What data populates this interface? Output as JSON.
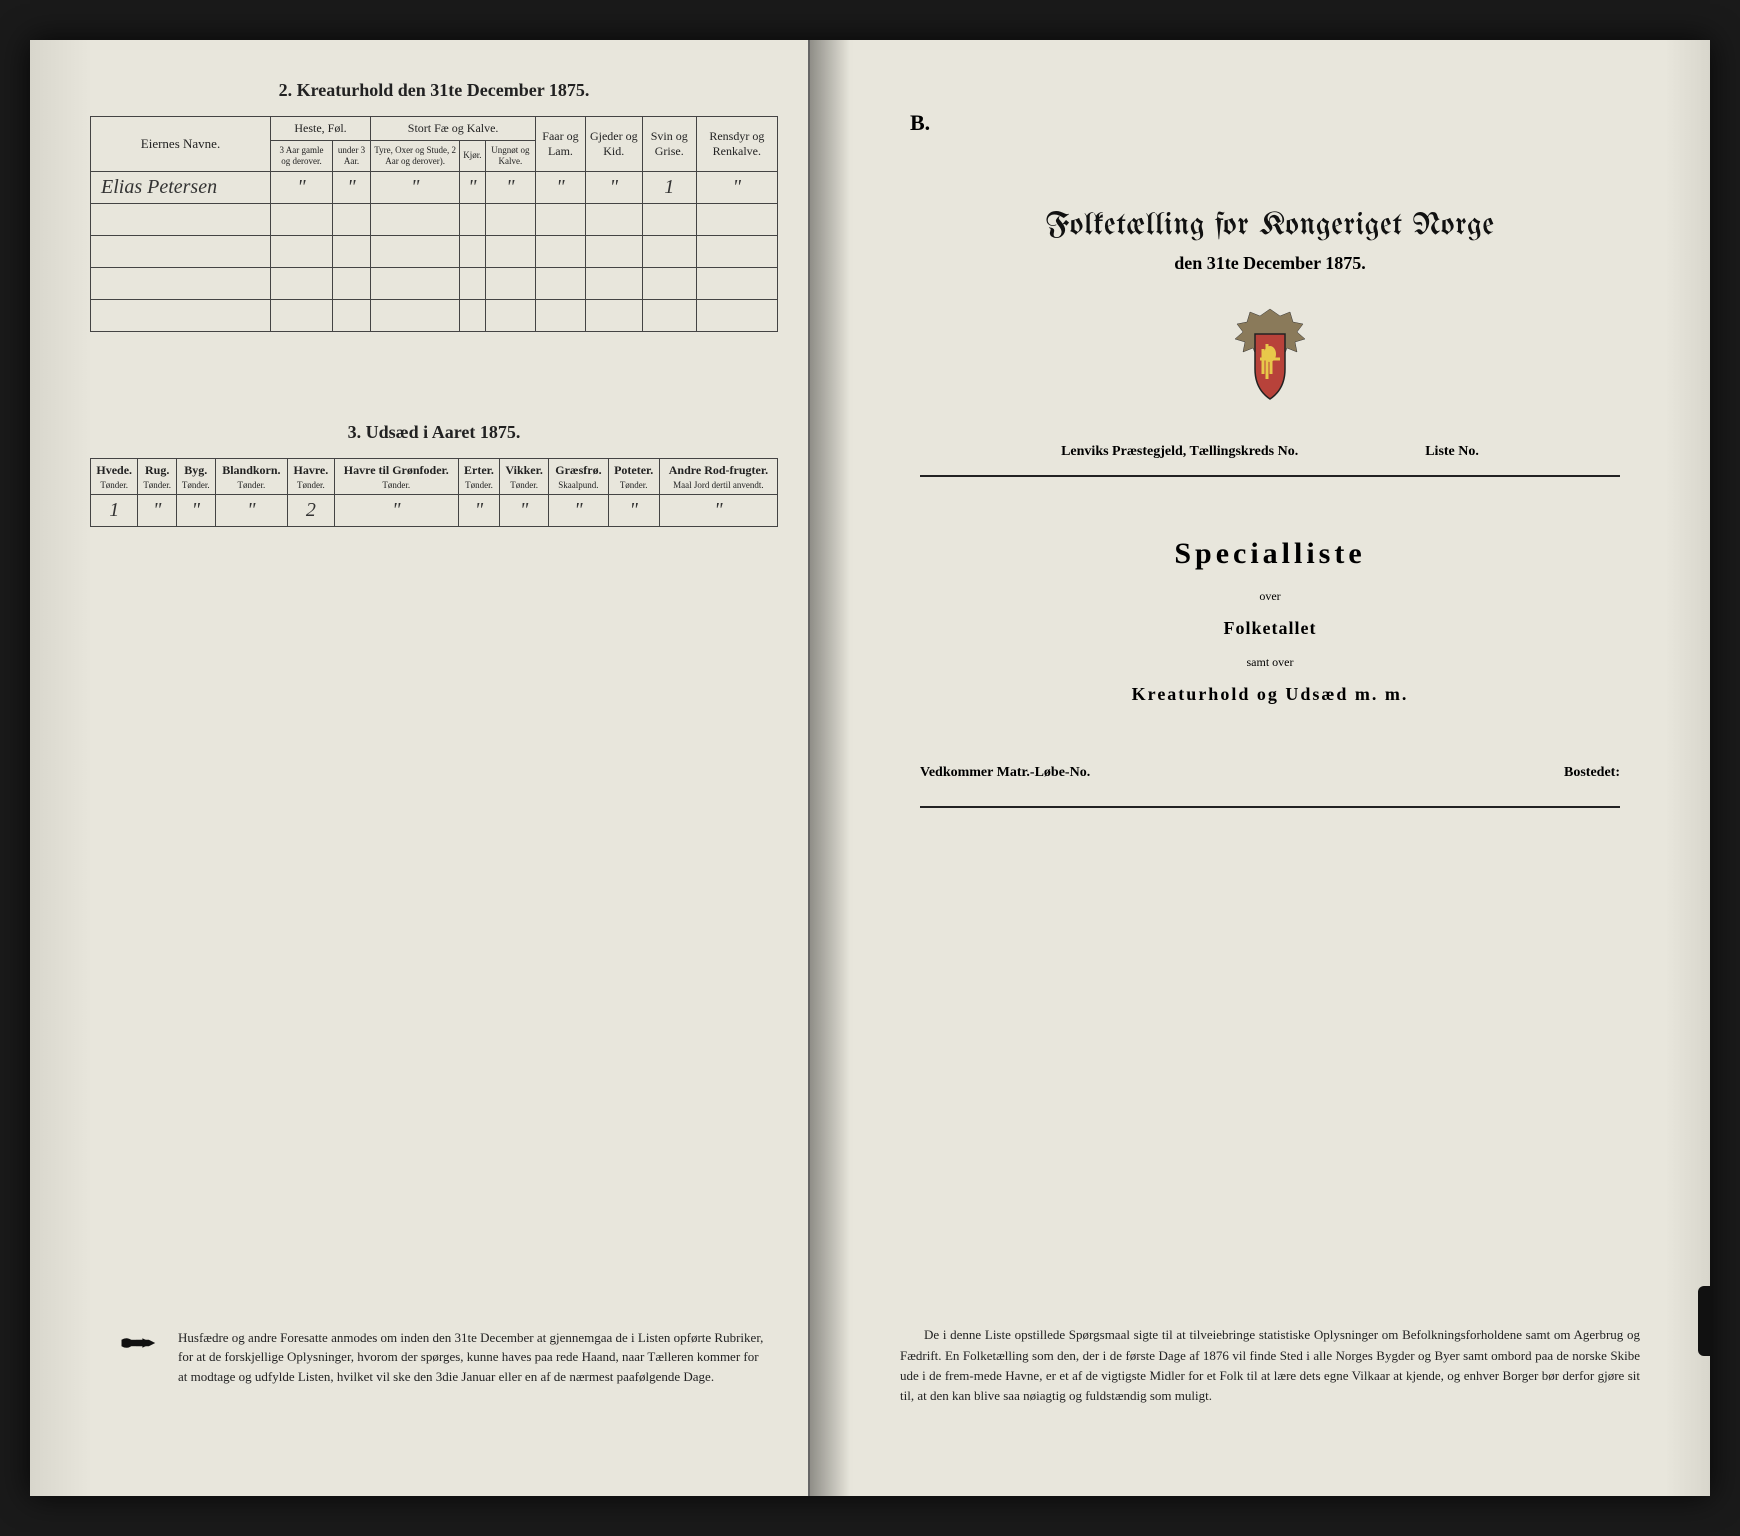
{
  "left": {
    "section2_title": "2.  Kreaturhold den 31te December 1875.",
    "table2": {
      "headers": {
        "name": "Eiernes Navne.",
        "heste": "Heste, Føl.",
        "heste_sub1": "3 Aar gamle og derover.",
        "heste_sub2": "under 3 Aar.",
        "stort": "Stort Fæ og Kalve.",
        "stort_sub1": "Tyre, Oxer og Stude, 2 Aar og derover).",
        "stort_sub2": "Kjør.",
        "stort_sub3": "Ungnøt og Kalve.",
        "faar": "Faar og Lam.",
        "gjeder": "Gjeder og Kid.",
        "svin": "Svin og Grise.",
        "rensdyr": "Rensdyr og Renkalve."
      },
      "row": {
        "name": "Elias  Petersen",
        "vals": [
          "\"",
          "\"",
          "\"",
          "\"",
          "\"",
          "\"",
          "\"",
          "1",
          "\""
        ]
      }
    },
    "section3_title": "3.  Udsæd i Aaret 1875.",
    "table3": {
      "cols": [
        {
          "h": "Hvede.",
          "u": "Tønder."
        },
        {
          "h": "Rug.",
          "u": "Tønder."
        },
        {
          "h": "Byg.",
          "u": "Tønder."
        },
        {
          "h": "Blandkorn.",
          "u": "Tønder."
        },
        {
          "h": "Havre.",
          "u": "Tønder."
        },
        {
          "h": "Havre til Grønfoder.",
          "u": "Tønder."
        },
        {
          "h": "Erter.",
          "u": "Tønder."
        },
        {
          "h": "Vikker.",
          "u": "Tønder."
        },
        {
          "h": "Græsfrø.",
          "u": "Skaalpund."
        },
        {
          "h": "Poteter.",
          "u": "Tønder."
        },
        {
          "h": "Andre Rod-frugter.",
          "u": "Maal Jord dertil anvendt."
        }
      ],
      "vals": [
        "1",
        "\"",
        "\"",
        "\"",
        "2",
        "\"",
        "\"",
        "\"",
        "\"",
        "\"",
        "\""
      ]
    },
    "footer": "Husfædre og andre Foresatte anmodes om inden den 31te December at gjennemgaa de i Listen opførte Rubriker, for at de forskjellige Oplysninger, hvorom der spørges, kunne haves paa rede Haand, naar Tælleren kommer for at modtage og udfylde Listen, hvilket vil ske den 3die Januar eller en af de nærmest paafølgende Dage."
  },
  "right": {
    "corner": "B.",
    "title_main": "Folketælling for Kongeriget Norge",
    "title_date": "den 31te December 1875.",
    "parish_left": "Lenviks Præstegjeld, Tællingskreds No.",
    "parish_right": "Liste No.",
    "special": "Specialliste",
    "over1": "over",
    "folketallet": "Folketallet",
    "samt": "samt over",
    "kreatur": "Kreaturhold og Udsæd m. m.",
    "matr_left": "Vedkommer Matr.-Løbe-No.",
    "matr_right": "Bostedet:",
    "footer": "De i denne Liste opstillede Spørgsmaal sigte til at tilveiebringe statistiske Oplysninger om Befolkningsforholdene samt om Agerbrug og Fædrift.  En Folketælling som den, der i de første Dage af 1876 vil finde Sted i alle Norges Bygder og Byer samt ombord paa de norske Skibe ude i de frem-mede Havne, er et af de vigtigste Midler for et Folk til at lære dets egne Vilkaar at kjende, og enhver Borger bør derfor gjøre sit til, at den kan blive saa nøiagtig og fuldstændig som muligt."
  },
  "colors": {
    "page_bg": "#e8e6dc",
    "ink": "#222222",
    "border": "#444444"
  }
}
